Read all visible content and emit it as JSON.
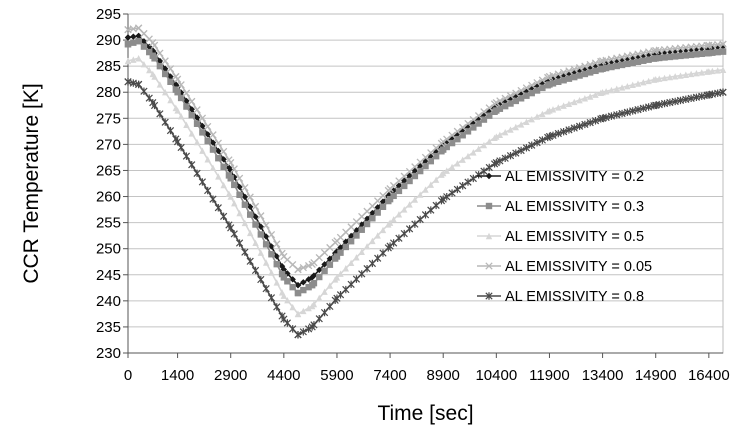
{
  "chart_data": {
    "type": "line",
    "title": "",
    "xlabel": "Time [sec]",
    "ylabel": "CCR Temperature [K]",
    "xlim": [
      0,
      16800
    ],
    "ylim": [
      230,
      295
    ],
    "x_ticks": [
      0,
      1400,
      2900,
      4400,
      5900,
      7400,
      8900,
      10400,
      11900,
      13400,
      14900,
      16400
    ],
    "y_ticks": [
      230,
      235,
      240,
      245,
      250,
      255,
      260,
      265,
      270,
      275,
      280,
      285,
      290,
      295
    ],
    "grid": "horizontal major gridlines",
    "legend_position": "right",
    "series": [
      {
        "name": "AL EMISSIVITY = 0.2",
        "color": "#1a1a1a",
        "marker": "diamond",
        "points": [
          [
            0,
            290.5
          ],
          [
            300,
            290.8
          ],
          [
            700,
            288
          ],
          [
            1400,
            281
          ],
          [
            2900,
            265
          ],
          [
            4400,
            246
          ],
          [
            4800,
            243
          ],
          [
            5200,
            244.5
          ],
          [
            5900,
            249.5
          ],
          [
            7400,
            260.5
          ],
          [
            8900,
            270
          ],
          [
            10400,
            277.5
          ],
          [
            11900,
            282.5
          ],
          [
            13400,
            285.5
          ],
          [
            14900,
            287.5
          ],
          [
            16400,
            288.5
          ],
          [
            16800,
            288.8
          ]
        ]
      },
      {
        "name": "AL EMISSIVITY = 0.3",
        "color": "#8c8c8c",
        "marker": "square",
        "points": [
          [
            0,
            289.2
          ],
          [
            300,
            289.8
          ],
          [
            700,
            287
          ],
          [
            1400,
            280
          ],
          [
            2900,
            263.5
          ],
          [
            4400,
            244.5
          ],
          [
            4800,
            241.5
          ],
          [
            5200,
            243
          ],
          [
            5900,
            248.5
          ],
          [
            7400,
            259.5
          ],
          [
            8900,
            269
          ],
          [
            10400,
            276.5
          ],
          [
            11900,
            281.5
          ],
          [
            13400,
            284.5
          ],
          [
            14900,
            286.5
          ],
          [
            16400,
            287.5
          ],
          [
            16800,
            287.8
          ]
        ]
      },
      {
        "name": "AL EMISSIVITY = 0.5",
        "color": "#d6d6d6",
        "marker": "triangle",
        "points": [
          [
            0,
            286
          ],
          [
            300,
            286.5
          ],
          [
            700,
            283.5
          ],
          [
            1400,
            276.5
          ],
          [
            2900,
            260
          ],
          [
            4400,
            241
          ],
          [
            4800,
            237.5
          ],
          [
            5200,
            239
          ],
          [
            5900,
            244.5
          ],
          [
            7400,
            255
          ],
          [
            8900,
            264.5
          ],
          [
            10400,
            271.5
          ],
          [
            11900,
            276.5
          ],
          [
            13400,
            280
          ],
          [
            14900,
            282.5
          ],
          [
            16400,
            284
          ],
          [
            16800,
            284.3
          ]
        ]
      },
      {
        "name": "AL EMISSIVITY = 0.05",
        "color": "#b8b8b8",
        "marker": "x",
        "points": [
          [
            0,
            292
          ],
          [
            300,
            292.3
          ],
          [
            700,
            289.5
          ],
          [
            1400,
            282.5
          ],
          [
            2900,
            266.5
          ],
          [
            4400,
            248.5
          ],
          [
            4800,
            246
          ],
          [
            5200,
            247
          ],
          [
            5900,
            251.5
          ],
          [
            7400,
            261.5
          ],
          [
            8900,
            270.5
          ],
          [
            10400,
            278
          ],
          [
            11900,
            283
          ],
          [
            13400,
            286
          ],
          [
            14900,
            288
          ],
          [
            16400,
            289
          ],
          [
            16800,
            289.2
          ]
        ]
      },
      {
        "name": "AL EMISSIVITY = 0.8",
        "color": "#4a4a4a",
        "marker": "star",
        "points": [
          [
            0,
            282
          ],
          [
            300,
            281.5
          ],
          [
            700,
            278
          ],
          [
            1400,
            270.5
          ],
          [
            2900,
            254
          ],
          [
            4400,
            236.5
          ],
          [
            4800,
            233.5
          ],
          [
            5200,
            235
          ],
          [
            5900,
            240.5
          ],
          [
            7400,
            250.5
          ],
          [
            8900,
            259.5
          ],
          [
            10400,
            266.5
          ],
          [
            11900,
            271.5
          ],
          [
            13400,
            275
          ],
          [
            14900,
            277.5
          ],
          [
            16400,
            279.5
          ],
          [
            16800,
            280
          ]
        ]
      }
    ]
  }
}
